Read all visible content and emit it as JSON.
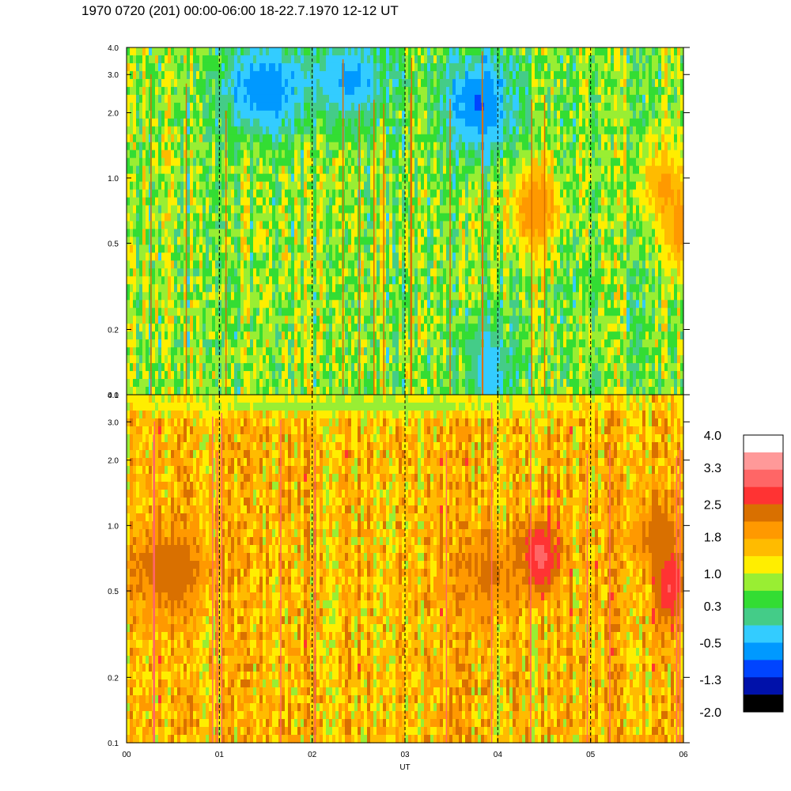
{
  "title": "1970 0720 (201) 00:00-06:00 18-22.7.1970  12-12 UT",
  "chart_data": [
    {
      "type": "heatmap",
      "panel": "upper",
      "x_ticks": [
        "00",
        "01",
        "02",
        "03",
        "04",
        "05",
        "06"
      ],
      "xlim": [
        0,
        6
      ],
      "y_scale": "log",
      "ylim": [
        0.1,
        4.0
      ],
      "y_ticks": [
        "0.1",
        "0.2",
        "0.5",
        "1.0",
        "2.0",
        "3.0",
        "4.0"
      ],
      "y_tick_values": [
        0.1,
        0.2,
        0.5,
        1.0,
        2.0,
        3.0,
        4.0
      ],
      "dashed_verticals": [
        1,
        2,
        3,
        4,
        5
      ],
      "base_level": 0.7,
      "features": [
        {
          "x": 4.4,
          "y": 0.72,
          "level": 2.1,
          "rx": 0.28,
          "ry": 0.22
        },
        {
          "x": 5.8,
          "y": 0.9,
          "level": 1.8,
          "rx": 0.3,
          "ry": 0.2
        },
        {
          "x": 5.95,
          "y": 0.55,
          "level": 1.9,
          "rx": 0.15,
          "ry": 0.2
        },
        {
          "x": 1.5,
          "y": 2.6,
          "level": -0.8,
          "rx": 0.5,
          "ry": 0.22
        },
        {
          "x": 2.4,
          "y": 2.8,
          "level": -0.6,
          "rx": 0.45,
          "ry": 0.2
        },
        {
          "x": 3.8,
          "y": 2.2,
          "level": -0.9,
          "rx": 0.4,
          "ry": 0.25
        },
        {
          "x": 3.9,
          "y": 0.13,
          "level": -0.4,
          "rx": 0.25,
          "ry": 0.25
        }
      ]
    },
    {
      "type": "heatmap",
      "panel": "lower",
      "x_ticks": [
        "00",
        "01",
        "02",
        "03",
        "04",
        "05",
        "06"
      ],
      "xlim": [
        0,
        6
      ],
      "xlabel": "UT",
      "y_scale": "log",
      "ylim": [
        0.1,
        4.0
      ],
      "y_ticks": [
        "0.1",
        "0.2",
        "0.5",
        "1.0",
        "2.0",
        "3.0",
        "4.0"
      ],
      "y_tick_values": [
        0.1,
        0.2,
        0.5,
        1.0,
        2.0,
        3.0,
        4.0
      ],
      "dashed_verticals": [
        1,
        2,
        3,
        4,
        5
      ],
      "base_level": 1.6,
      "features": [
        {
          "x": 0.45,
          "y": 0.62,
          "level": 2.4,
          "rx": 0.45,
          "ry": 0.22
        },
        {
          "x": 4.45,
          "y": 0.72,
          "level": 3.1,
          "rx": 0.22,
          "ry": 0.18
        },
        {
          "x": 5.85,
          "y": 0.55,
          "level": 3.0,
          "rx": 0.15,
          "ry": 0.2
        },
        {
          "x": 5.7,
          "y": 0.9,
          "level": 2.3,
          "rx": 0.25,
          "ry": 0.18
        },
        {
          "x": 3.9,
          "y": 0.6,
          "level": 2.2,
          "rx": 0.4,
          "ry": 0.2
        },
        {
          "x": 2.5,
          "y": 3.6,
          "level": 0.8,
          "rx": 3.0,
          "ry": 0.05
        }
      ]
    }
  ],
  "colorbar": {
    "labels": [
      "4.0",
      "3.3",
      "2.5",
      "1.8",
      "1.0",
      "0.3",
      "-0.5",
      "-1.3",
      "-2.0"
    ],
    "label_values": [
      4.0,
      3.3,
      2.5,
      1.8,
      1.0,
      0.3,
      -0.5,
      -1.3,
      -2.0
    ],
    "colors_top_to_bottom": [
      "#ffffff",
      "#ff9999",
      "#ff6666",
      "#ff3333",
      "#d97000",
      "#ff9900",
      "#ffbb00",
      "#ffee00",
      "#99ee33",
      "#33dd33",
      "#44cc88",
      "#33ccff",
      "#0099ff",
      "#0044ff",
      "#0011aa",
      "#000000"
    ]
  }
}
